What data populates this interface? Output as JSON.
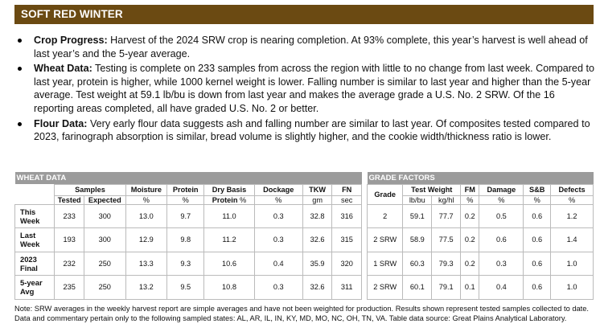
{
  "header": {
    "title": "SOFT RED WINTER"
  },
  "bullets": [
    {
      "lead": "Crop Progress:",
      "text": " Harvest of the 2024 SRW crop is nearing completion. At 93% complete, this year’s harvest is well ahead of last year’s and the 5-year average."
    },
    {
      "lead": "Wheat Data:",
      "text": " Testing is complete on 233 samples from across the region with little to no change from last week. Compared to last year, protein is higher, while 1000 kernel weight is lower. Falling number is similar to last year and higher than the 5-year average. Test weight at 59.1 lb/bu is down from last year and makes the average grade a U.S. No. 2 SRW. Of the 16 reporting areas completed, all have graded U.S. No. 2 or better."
    },
    {
      "lead": "Flour Data:",
      "text": " Very early flour data suggests ash and falling number are similar to last year. Of composites tested compared to 2023, farinograph absorption is similar, bread volume is slightly higher, and the cookie width/thickness ratio is lower."
    }
  ],
  "wheat_table": {
    "title": "WHEAT DATA",
    "group_samples": "Samples",
    "col_tested": "Tested",
    "col_expected": "Expected",
    "col_moisture": "Moisture",
    "col_protein": "Protein",
    "col_drybasis_1": "Dry Basis",
    "col_drybasis_2": "Protein",
    "col_dockage": "Dockage",
    "col_tkw": "TKW",
    "col_fn": "FN",
    "unit_moisture": "%",
    "unit_protein": "%",
    "unit_drybasis": "%",
    "unit_dockage": "%",
    "unit_tkw": "gm",
    "unit_fn": "sec",
    "rows": [
      {
        "l1": "This",
        "l2": "Week",
        "tested": "233",
        "expected": "300",
        "moisture": "13.0",
        "protein": "9.7",
        "drybasis": "11.0",
        "dockage": "0.3",
        "tkw": "32.8",
        "fn": "316"
      },
      {
        "l1": "Last",
        "l2": "Week",
        "tested": "193",
        "expected": "300",
        "moisture": "12.9",
        "protein": "9.8",
        "drybasis": "11.2",
        "dockage": "0.3",
        "tkw": "32.6",
        "fn": "315"
      },
      {
        "l1": "2023",
        "l2": "Final",
        "tested": "232",
        "expected": "250",
        "moisture": "13.3",
        "protein": "9.3",
        "drybasis": "10.6",
        "dockage": "0.4",
        "tkw": "35.9",
        "fn": "320"
      },
      {
        "l1": "5-year",
        "l2": "Avg",
        "tested": "235",
        "expected": "250",
        "moisture": "13.2",
        "protein": "9.5",
        "drybasis": "10.8",
        "dockage": "0.3",
        "tkw": "32.6",
        "fn": "311"
      }
    ]
  },
  "grade_table": {
    "title": "GRADE FACTORS",
    "col_grade": "Grade",
    "group_testweight": "Test Weight",
    "col_lbbu": "lb/bu",
    "col_kghl": "kg/hl",
    "col_fm": "FM",
    "col_damage": "Damage",
    "col_sb": "S&B",
    "col_defects": "Defects",
    "unit_fm": "%",
    "unit_damage": "%",
    "unit_sb": "%",
    "unit_defects": "%",
    "rows": [
      {
        "grade": "2",
        "lbbu": "59.1",
        "kghl": "77.7",
        "fm": "0.2",
        "damage": "0.5",
        "sb": "0.6",
        "defects": "1.2"
      },
      {
        "grade": "2 SRW",
        "lbbu": "58.9",
        "kghl": "77.5",
        "fm": "0.2",
        "damage": "0.6",
        "sb": "0.6",
        "defects": "1.4"
      },
      {
        "grade": "1 SRW",
        "lbbu": "60.3",
        "kghl": "79.3",
        "fm": "0.2",
        "damage": "0.3",
        "sb": "0.6",
        "defects": "1.0"
      },
      {
        "grade": "2 SRW",
        "lbbu": "60.1",
        "kghl": "79.1",
        "fm": "0.1",
        "damage": "0.4",
        "sb": "0.6",
        "defects": "1.0"
      }
    ]
  },
  "footnote": "Note: SRW averages in the weekly harvest report are simple averages and have not been weighted for production. Results shown represent tested samples collected to date. Data and commentary pertain only to the following sampled states: AL, AR, IL, IN, KY, MD, MO, NC, OH, TN, VA. Table data source: Great Plains Analytical Laboratory."
}
